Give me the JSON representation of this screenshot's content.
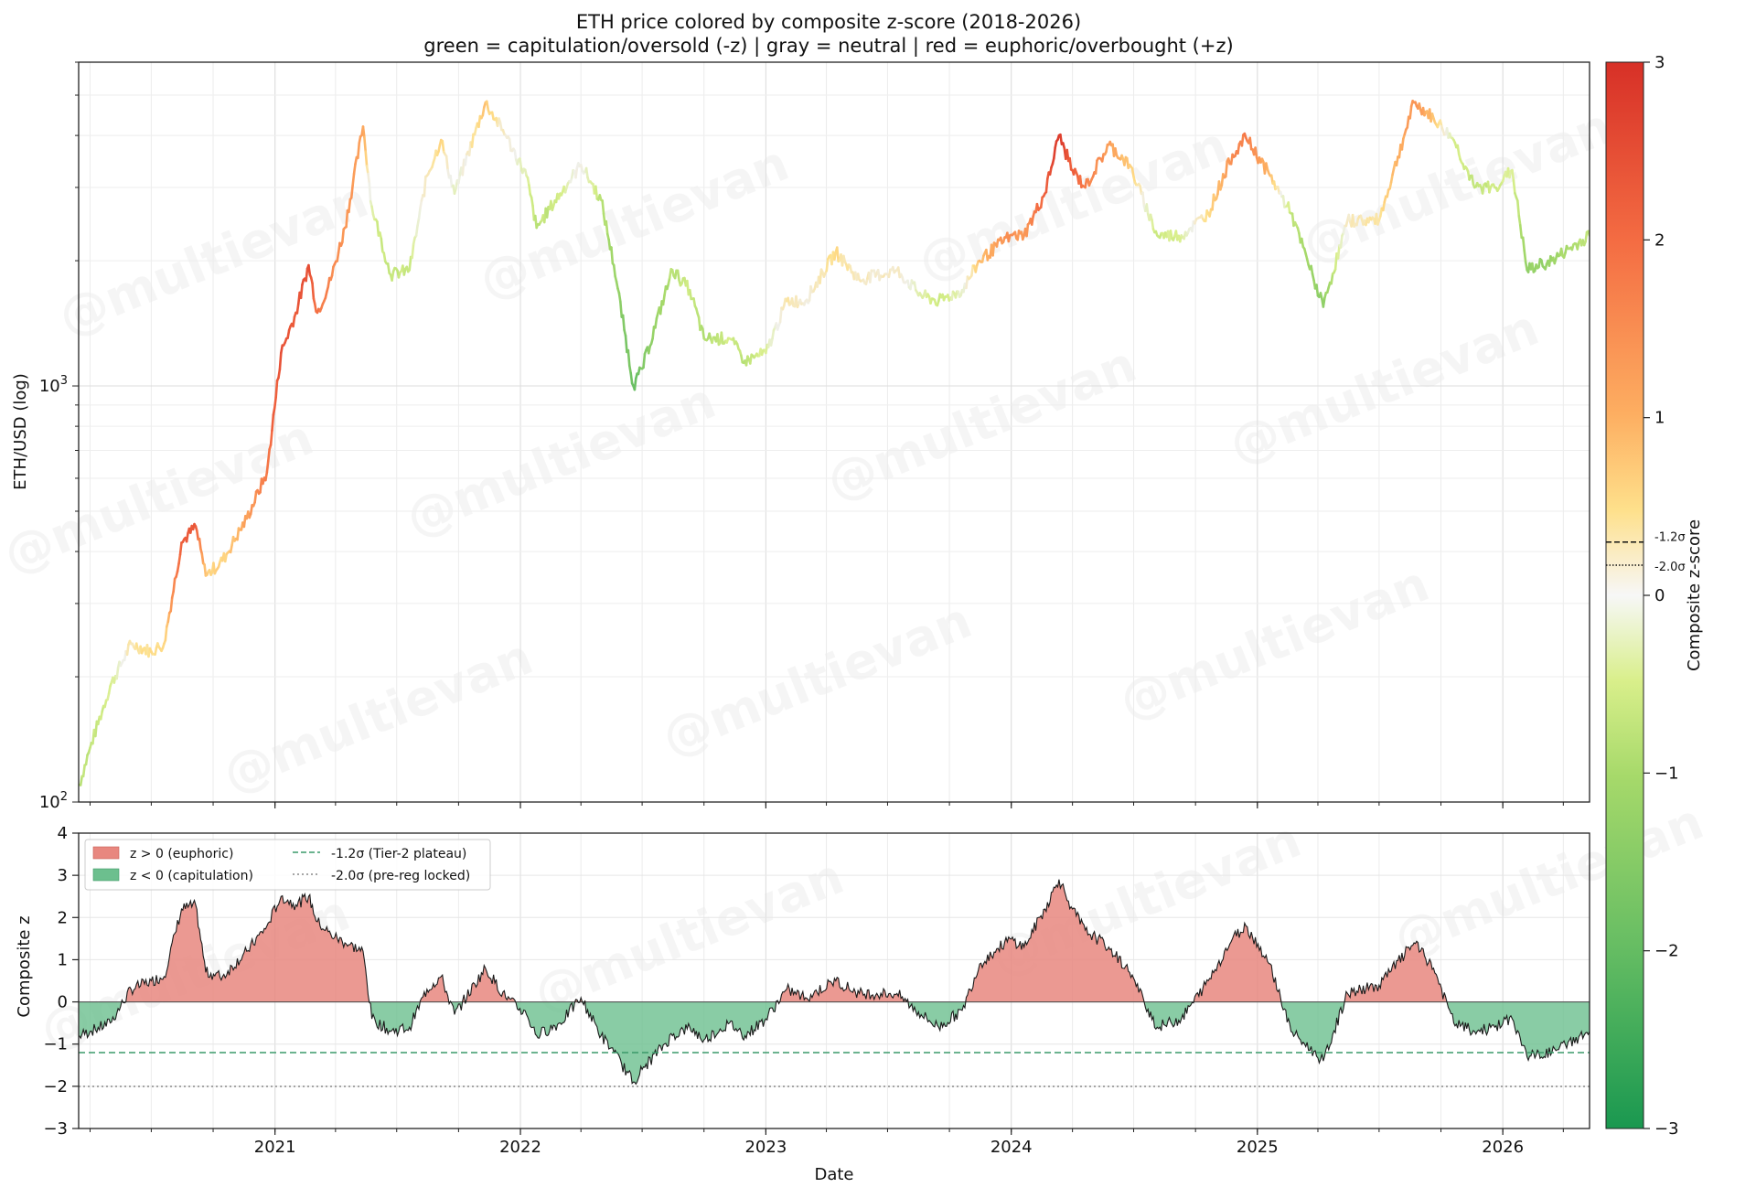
{
  "title_line1": "ETH price colored by composite z-score (2018-2026)",
  "title_line2": "green = capitulation/oversold (-z) | gray = neutral | red = euphoric/overbought (+z)",
  "watermark": "@multievan",
  "colors": {
    "euphoric_fill": "#e8877f",
    "capitulation_fill": "#6cbf8e",
    "tier2_line": "#3a9a6a",
    "prereg_line": "#888888",
    "neutral": "#f5f5f5"
  },
  "chart_data": [
    {
      "type": "line",
      "panel": "price",
      "ylabel": "ETH/USD (log)",
      "yscale": "log",
      "ylim": [
        100,
        6000
      ],
      "yticks": [
        {
          "value": 100,
          "base": "10",
          "exp": "2"
        },
        {
          "value": 1000,
          "base": "10",
          "exp": "3"
        }
      ],
      "xlim": [
        "2020-03-15",
        "2026-05-10"
      ],
      "grid": true,
      "series": [
        {
          "color_by": "composite z-score",
          "points": [
            [
              "2020-03-16",
              110,
              -0.8
            ],
            [
              "2020-04-01",
              135,
              -0.7
            ],
            [
              "2020-05-01",
              190,
              -0.5
            ],
            [
              "2020-06-01",
              240,
              0.3
            ],
            [
              "2020-07-01",
              230,
              0.5
            ],
            [
              "2020-07-20",
              240,
              0.6
            ],
            [
              "2020-08-15",
              420,
              2.2
            ],
            [
              "2020-09-05",
              460,
              2.3
            ],
            [
              "2020-09-20",
              350,
              0.7
            ],
            [
              "2020-10-15",
              380,
              0.6
            ],
            [
              "2020-11-20",
              480,
              1.2
            ],
            [
              "2020-12-20",
              620,
              1.8
            ],
            [
              "2021-01-10",
              1200,
              2.5
            ],
            [
              "2021-02-01",
              1500,
              2.3
            ],
            [
              "2021-02-20",
              1950,
              2.5
            ],
            [
              "2021-03-05",
              1500,
              1.9
            ],
            [
              "2021-03-25",
              1800,
              1.6
            ],
            [
              "2021-04-15",
              2400,
              1.4
            ],
            [
              "2021-05-12",
              4200,
              1.2
            ],
            [
              "2021-05-25",
              2700,
              -0.4
            ],
            [
              "2021-06-22",
              1850,
              -0.7
            ],
            [
              "2021-07-20",
              1900,
              -0.6
            ],
            [
              "2021-08-15",
              3200,
              0.3
            ],
            [
              "2021-09-05",
              3900,
              0.6
            ],
            [
              "2021-09-25",
              2900,
              -0.3
            ],
            [
              "2021-11-10",
              4800,
              0.8
            ],
            [
              "2021-12-10",
              4000,
              0.1
            ],
            [
              "2022-01-10",
              3200,
              -0.3
            ],
            [
              "2022-01-25",
              2400,
              -0.8
            ],
            [
              "2022-03-01",
              2900,
              -0.5
            ],
            [
              "2022-04-01",
              3400,
              0.1
            ],
            [
              "2022-05-01",
              2800,
              -0.8
            ],
            [
              "2022-05-20",
              1950,
              -1.2
            ],
            [
              "2022-06-18",
              1000,
              -1.9
            ],
            [
              "2022-07-01",
              1100,
              -1.6
            ],
            [
              "2022-08-15",
              1900,
              -0.8
            ],
            [
              "2022-09-10",
              1700,
              -0.6
            ],
            [
              "2022-10-01",
              1300,
              -0.9
            ],
            [
              "2022-11-08",
              1300,
              -0.5
            ],
            [
              "2022-12-01",
              1150,
              -0.8
            ],
            [
              "2023-01-01",
              1200,
              -0.4
            ],
            [
              "2023-02-01",
              1600,
              0.3
            ],
            [
              "2023-03-01",
              1600,
              0.1
            ],
            [
              "2023-04-15",
              2100,
              0.5
            ],
            [
              "2023-05-20",
              1800,
              0.2
            ],
            [
              "2023-07-15",
              1900,
              0.2
            ],
            [
              "2023-08-20",
              1650,
              -0.3
            ],
            [
              "2023-09-15",
              1600,
              -0.6
            ],
            [
              "2023-10-20",
              1700,
              -0.2
            ],
            [
              "2023-11-15",
              2000,
              0.9
            ],
            [
              "2023-12-30",
              2300,
              1.5
            ],
            [
              "2024-01-20",
              2300,
              1.3
            ],
            [
              "2024-02-20",
              2900,
              2.2
            ],
            [
              "2024-03-12",
              4000,
              2.9
            ],
            [
              "2024-04-01",
              3300,
              2.2
            ],
            [
              "2024-04-20",
              3000,
              1.7
            ],
            [
              "2024-05-25",
              3800,
              1.3
            ],
            [
              "2024-06-25",
              3400,
              0.7
            ],
            [
              "2024-08-05",
              2300,
              -0.6
            ],
            [
              "2024-09-10",
              2300,
              -0.4
            ],
            [
              "2024-10-20",
              2600,
              0.5
            ],
            [
              "2024-11-25",
              3600,
              1.5
            ],
            [
              "2024-12-15",
              3950,
              1.8
            ],
            [
              "2025-01-20",
              3200,
              0.9
            ],
            [
              "2025-02-20",
              2600,
              -0.7
            ],
            [
              "2025-04-09",
              1550,
              -1.4
            ],
            [
              "2025-05-15",
              2500,
              0.2
            ],
            [
              "2025-07-01",
              2500,
              0.4
            ],
            [
              "2025-08-22",
              4800,
              1.4
            ],
            [
              "2025-09-20",
              4400,
              0.8
            ],
            [
              "2025-10-20",
              3900,
              -0.5
            ],
            [
              "2025-11-20",
              3000,
              -0.7
            ],
            [
              "2025-12-20",
              3000,
              -0.6
            ],
            [
              "2026-01-15",
              3300,
              -0.4
            ],
            [
              "2026-02-06",
              1900,
              -1.3
            ],
            [
              "2026-03-15",
              2000,
              -1.2
            ],
            [
              "2026-05-10",
              2300,
              -0.7
            ]
          ]
        }
      ]
    },
    {
      "type": "area",
      "panel": "zscore",
      "ylabel": "Composite z",
      "xlabel": "Date",
      "ylim": [
        -3,
        4
      ],
      "yticks": [
        "−3",
        "−2",
        "−1",
        "0",
        "1",
        "2",
        "3",
        "4"
      ],
      "xticks": [
        "2021",
        "2022",
        "2023",
        "2024",
        "2025",
        "2026"
      ],
      "xlim": [
        "2020-03-15",
        "2026-05-10"
      ],
      "grid": true,
      "legend_position": "upper-left",
      "legend": [
        "z > 0 (euphoric)",
        "z < 0 (capitulation)",
        "-1.2σ (Tier-2 plateau)",
        "-2.0σ (pre-reg locked)"
      ],
      "hlines": [
        {
          "value": -1.2,
          "style": "dashed"
        },
        {
          "value": -2.0,
          "style": "dotted"
        }
      ],
      "series_ref": "chart_data.0.series.0.points (third column)"
    },
    {
      "type": "colorbar",
      "label": "Composite z-score",
      "range": [
        -3,
        3
      ],
      "ticks": [
        "−3",
        "−2",
        "−1",
        "0",
        "1",
        "2",
        "3"
      ],
      "annotations": [
        {
          "value": 0.3,
          "label": "-1.2σ",
          "style": "dashed"
        },
        {
          "value": 0.17,
          "label": "-2.0σ",
          "style": "dotted"
        }
      ]
    }
  ]
}
